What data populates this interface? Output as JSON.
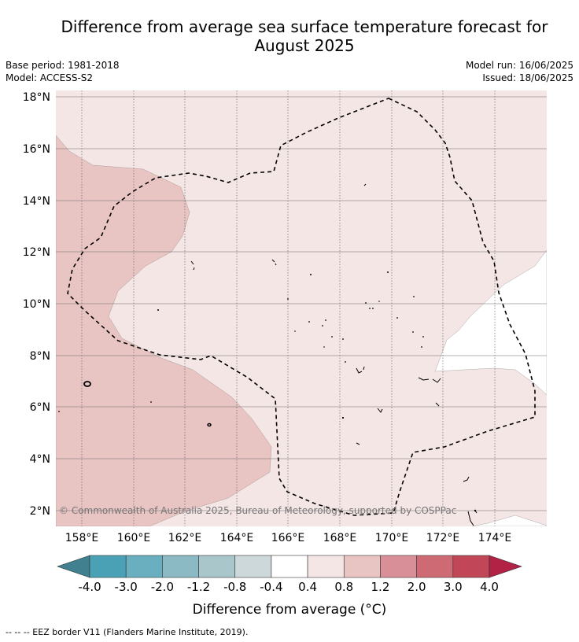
{
  "title": "Difference from average sea surface temperature forecast for August 2025",
  "base_period": "Base period: 1981-2018",
  "model": "Model: ACCESS-S2",
  "model_run": "Model run: 16/06/2025",
  "issued": "Issued: 18/06/2025",
  "copyright": "© Commonwealth of Australia 2025, Bureau of Meteorology, supported by COSPPac",
  "footer": "--  --  -- EEZ border V11 (Flanders Marine Institute, 2019).",
  "map": {
    "lon_ticks": [
      "158°E",
      "160°E",
      "162°E",
      "164°E",
      "166°E",
      "168°E",
      "170°E",
      "172°E",
      "174°E"
    ],
    "lat_ticks": [
      "18°N",
      "16°N",
      "14°N",
      "12°N",
      "10°N",
      "8°N",
      "6°N",
      "4°N",
      "2°N"
    ],
    "fill_colors": {
      "anomaly_0_4_to_0_8": "#f5e6e6",
      "anomaly_0_8_to_1_2": "#e8c5c3",
      "near_average": "#ffffff"
    }
  },
  "colorbar": {
    "title": "Difference from average (°C)",
    "tick_labels": [
      "-4.0",
      "-3.0",
      "-2.0",
      "-1.2",
      "-0.8",
      "-0.4",
      "0.4",
      "0.8",
      "1.2",
      "2.0",
      "3.0",
      "4.0"
    ],
    "colors": [
      "#40808f",
      "#4aa1b5",
      "#6aafc0",
      "#8bb9c4",
      "#a9c7cb",
      "#ccd8da",
      "#ffffff",
      "#f5e6e6",
      "#e8c5c3",
      "#d98f97",
      "#cd6a74",
      "#c14657",
      "#b22244"
    ]
  }
}
